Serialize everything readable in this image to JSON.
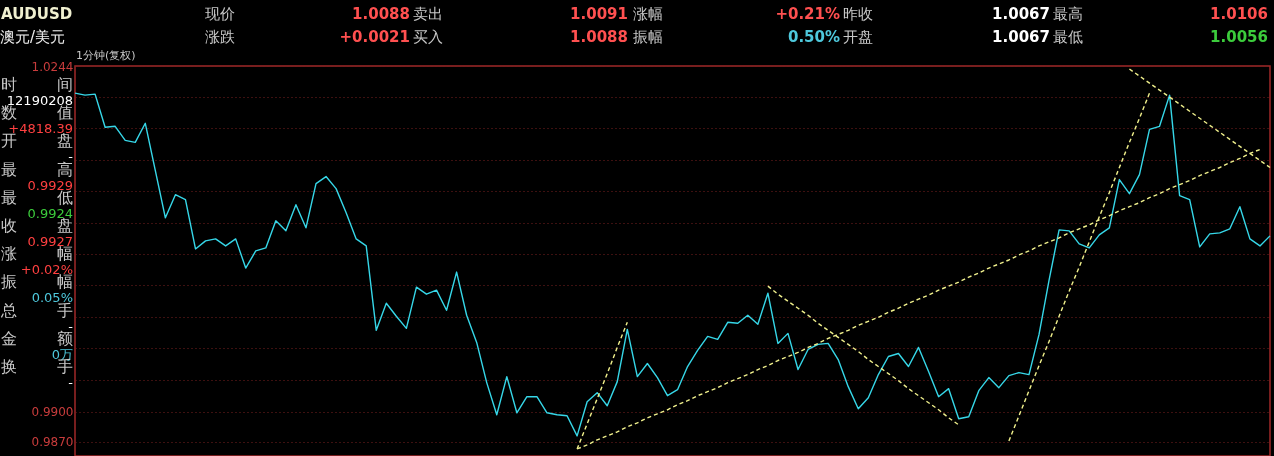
{
  "chart_data": {
    "type": "line",
    "title": "AUDUSD",
    "subtitle": "澳元/美元",
    "annotations": [
      "1分钟(复权)",
      "现价",
      "1.0088",
      "卖出",
      "1.0091",
      "涨幅",
      "+0.21%",
      "昨收",
      "1.0067",
      "最高",
      "1.0106",
      "涨跌",
      "+0.0021",
      "买入",
      "1.0088",
      "振幅",
      "0.50%",
      "开盘",
      "1.0067",
      "最低",
      "1.0056",
      "时",
      "间",
      "12190208",
      "数",
      "值",
      "+4818.39",
      "开",
      "盘",
      "-",
      "最",
      "高",
      "0.9929",
      "最",
      "低",
      "0.9924",
      "收",
      "盘",
      "0.9927",
      "涨",
      "幅",
      "+0.02%",
      "振",
      "幅",
      "0.05%",
      "总",
      "手",
      "-",
      "金",
      "额",
      "0万",
      "换",
      "手",
      "-"
    ],
    "categories": [
      null,
      null,
      null,
      null,
      null,
      null,
      null,
      null,
      null,
      null,
      null,
      null,
      null,
      null,
      null,
      null,
      null,
      null,
      null,
      null,
      null,
      null,
      null,
      null,
      null,
      null,
      null,
      null,
      null,
      null,
      null,
      null,
      null,
      null,
      null,
      null,
      null,
      null,
      null,
      null,
      null,
      null,
      null,
      null,
      null,
      null,
      null,
      null,
      null,
      null,
      null,
      null,
      null,
      null,
      null,
      null,
      null,
      null,
      null,
      null,
      null,
      null,
      null,
      null,
      null,
      null,
      null,
      null,
      null,
      null,
      null,
      null,
      null,
      null,
      null,
      null,
      null,
      null,
      null,
      null,
      null,
      null,
      null,
      null,
      null,
      null,
      null,
      null,
      null,
      null,
      null,
      null,
      null,
      null,
      null,
      null,
      null,
      null,
      null,
      null,
      null,
      null,
      null,
      null,
      null,
      null,
      null,
      null,
      null,
      null,
      null,
      null,
      null,
      null,
      null,
      null,
      null,
      null,
      null,
      null
    ],
    "series": [
      {
        "color": "#36d7e8",
        "values": [
          1.0217,
          1.0215,
          1.0216,
          1.0183,
          1.0184,
          1.017,
          1.0168,
          1.0187,
          1.014,
          1.0093,
          1.0116,
          1.0111,
          1.0062,
          1.007,
          1.0072,
          1.0065,
          1.0072,
          1.0043,
          1.006,
          1.0063,
          1.009,
          1.008,
          1.0106,
          1.0083,
          1.0127,
          1.0134,
          1.0122,
          1.0098,
          1.0072,
          1.0065,
          0.9981,
          1.0008,
          0.9995,
          0.9983,
          1.0024,
          1.0017,
          1.0021,
          1.0001,
          1.0039,
          0.9996,
          0.9969,
          0.9929,
          0.9897,
          0.9935,
          0.9899,
          0.9915,
          0.9915,
          0.9899,
          0.9897,
          0.9896,
          0.9876,
          0.991,
          0.9919,
          0.9906,
          0.993,
          0.9982,
          0.9935,
          0.9948,
          0.9934,
          0.9916,
          0.9922,
          0.9945,
          0.9961,
          0.9975,
          0.9972,
          0.9989,
          0.9988,
          0.9996,
          0.9987,
          1.0018,
          0.9968,
          0.9978,
          0.9942,
          0.9962,
          0.9967,
          0.9968,
          0.9952,
          0.9925,
          0.9903,
          0.9914,
          0.9937,
          0.9955,
          0.9958,
          0.9945,
          0.9964,
          0.994,
          0.9915,
          0.9923,
          0.9893,
          0.9895,
          0.9921,
          0.9934,
          0.9924,
          0.9936,
          0.9939,
          0.9937,
          0.9977,
          1.0031,
          1.0081,
          1.008,
          1.0067,
          1.0063,
          1.0076,
          1.0083,
          1.0131,
          1.0117,
          1.0136,
          1.0181,
          1.0184,
          1.0215,
          1.0115,
          1.0111,
          1.0064,
          1.0077,
          1.0078,
          1.0082,
          1.0104,
          1.0072,
          1.0065,
          1.0075
        ]
      },
      {
        "color": "#f0f08c",
        "line_style": "dashed",
        "values": [
          null,
          null,
          null,
          null,
          null,
          null,
          null,
          null,
          null,
          null,
          null,
          null,
          null,
          null,
          null,
          null,
          null,
          null,
          null,
          null,
          null,
          null,
          null,
          null,
          null,
          null,
          null,
          null,
          null,
          null,
          null,
          null,
          null,
          null,
          null,
          null,
          null,
          null,
          null,
          null,
          null,
          null,
          null,
          null,
          null,
          null,
          null,
          null,
          null,
          null,
          0.9863,
          0.9888,
          0.9913,
          0.9938,
          0.9964,
          0.9989,
          null,
          null,
          null,
          null,
          null,
          null,
          null,
          null,
          null,
          null,
          null,
          null,
          null,
          null,
          null,
          null,
          null,
          null,
          null,
          null,
          null,
          null,
          null,
          null,
          null,
          null,
          null,
          null,
          null,
          null,
          null,
          null,
          null,
          null,
          null,
          null,
          null,
          null,
          null,
          null,
          null,
          null,
          null,
          null,
          null,
          null,
          null,
          null,
          null,
          null,
          null,
          null,
          null,
          null,
          null,
          null,
          null,
          null,
          null,
          null,
          null,
          null,
          null,
          null
        ]
      },
      {
        "color": "#f0f08c",
        "line_style": "dashed",
        "values": [
          null,
          null,
          null,
          null,
          null,
          null,
          null,
          null,
          null,
          null,
          null,
          null,
          null,
          null,
          null,
          null,
          null,
          null,
          null,
          null,
          null,
          null,
          null,
          null,
          null,
          null,
          null,
          null,
          null,
          null,
          null,
          null,
          null,
          null,
          null,
          null,
          null,
          null,
          null,
          null,
          null,
          null,
          null,
          null,
          null,
          null,
          null,
          null,
          null,
          null,
          0.9863,
          0.9867,
          0.9872,
          0.9876,
          0.988,
          0.9885,
          0.9889,
          0.9894,
          0.9898,
          0.9902,
          0.9907,
          0.9911,
          0.9916,
          0.992,
          0.9924,
          0.9929,
          0.9933,
          0.9937,
          0.9942,
          0.9946,
          0.9951,
          0.9955,
          0.9959,
          0.9964,
          0.9968,
          0.9973,
          0.9977,
          0.9981,
          0.9986,
          0.999,
          0.9994,
          0.9999,
          1.0003,
          1.0008,
          1.0012,
          1.0016,
          1.0021,
          1.0025,
          1.0029,
          1.0034,
          1.0038,
          1.0043,
          1.0047,
          1.0051,
          1.0056,
          1.006,
          1.0065,
          1.0069,
          1.0073,
          1.0078,
          1.0082,
          1.0086,
          1.0091,
          1.0095,
          1.01,
          1.0104,
          1.0108,
          1.0113,
          1.0117,
          1.0122,
          1.0126,
          1.013,
          1.0135,
          1.0139,
          1.0143,
          1.0148,
          1.0152,
          1.0157,
          1.0161,
          null
        ]
      },
      {
        "color": "#f0f08c",
        "line_style": "dashed",
        "values": [
          null,
          null,
          null,
          null,
          null,
          null,
          null,
          null,
          null,
          null,
          null,
          null,
          null,
          null,
          null,
          null,
          null,
          null,
          null,
          null,
          null,
          null,
          null,
          null,
          null,
          null,
          null,
          null,
          null,
          null,
          null,
          null,
          null,
          null,
          null,
          null,
          null,
          null,
          null,
          null,
          null,
          null,
          null,
          null,
          null,
          null,
          null,
          null,
          null,
          null,
          null,
          null,
          null,
          null,
          null,
          null,
          null,
          null,
          null,
          null,
          null,
          null,
          null,
          null,
          null,
          null,
          null,
          null,
          null,
          1.0025,
          1.0017,
          1.001,
          1.0003,
          0.9996,
          0.9988,
          0.9981,
          0.9974,
          0.9967,
          0.996,
          0.9952,
          0.9945,
          0.9938,
          0.9931,
          0.9923,
          0.9916,
          0.9909,
          0.9902,
          0.9894,
          0.9887,
          null,
          null,
          null,
          null,
          null,
          null,
          null,
          null,
          null,
          null,
          null,
          null,
          null,
          null,
          null,
          null,
          null,
          null,
          null,
          null,
          null,
          null,
          null,
          null,
          null,
          null,
          null,
          null,
          null,
          null,
          null
        ]
      },
      {
        "color": "#f0f08c",
        "line_style": "dashed",
        "values": [
          null,
          null,
          null,
          null,
          null,
          null,
          null,
          null,
          null,
          null,
          null,
          null,
          null,
          null,
          null,
          null,
          null,
          null,
          null,
          null,
          null,
          null,
          null,
          null,
          null,
          null,
          null,
          null,
          null,
          null,
          null,
          null,
          null,
          null,
          null,
          null,
          null,
          null,
          null,
          null,
          null,
          null,
          null,
          null,
          null,
          null,
          null,
          null,
          null,
          null,
          null,
          null,
          null,
          null,
          null,
          null,
          null,
          null,
          null,
          null,
          null,
          null,
          null,
          null,
          null,
          null,
          null,
          null,
          null,
          null,
          null,
          null,
          null,
          null,
          null,
          null,
          null,
          null,
          null,
          null,
          null,
          null,
          null,
          null,
          null,
          null,
          null,
          null,
          null,
          null,
          null,
          null,
          null,
          0.9871,
          0.9896,
          0.9921,
          0.9946,
          0.997,
          0.9995,
          1.002,
          1.0044,
          1.0069,
          1.0094,
          1.0118,
          1.0143,
          1.0168,
          1.0192,
          1.0217,
          null,
          null,
          null,
          null,
          null,
          null,
          null,
          null,
          null,
          null,
          null,
          null
        ]
      },
      {
        "color": "#f0f08c",
        "line_style": "dashed",
        "values": [
          null,
          null,
          null,
          null,
          null,
          null,
          null,
          null,
          null,
          null,
          null,
          null,
          null,
          null,
          null,
          null,
          null,
          null,
          null,
          null,
          null,
          null,
          null,
          null,
          null,
          null,
          null,
          null,
          null,
          null,
          null,
          null,
          null,
          null,
          null,
          null,
          null,
          null,
          null,
          null,
          null,
          null,
          null,
          null,
          null,
          null,
          null,
          null,
          null,
          null,
          null,
          null,
          null,
          null,
          null,
          null,
          null,
          null,
          null,
          null,
          null,
          null,
          null,
          null,
          null,
          null,
          null,
          null,
          null,
          null,
          null,
          null,
          null,
          null,
          null,
          null,
          null,
          null,
          null,
          null,
          null,
          null,
          null,
          null,
          null,
          null,
          null,
          null,
          null,
          null,
          null,
          null,
          null,
          null,
          null,
          null,
          null,
          null,
          null,
          null,
          null,
          null,
          null,
          null,
          null,
          1.0241,
          1.0234,
          1.0227,
          1.022,
          1.0213,
          1.0206,
          1.0199,
          1.0192,
          1.0185,
          1.0178,
          1.0171,
          1.0164,
          1.0157,
          1.015,
          1.0143
        ]
      }
    ],
    "ylim": [
      0.9856,
      1.0244
    ],
    "yticks": [
      1.0244,
      {
        "value": 1.0213,
        "label": null
      },
      {
        "value": 1.0182,
        "label": null
      },
      {
        "value": 1.015,
        "label": null
      },
      {
        "value": 1.012,
        "label": null
      },
      {
        "value": 1.0088,
        "label": null
      },
      {
        "value": 1.0057,
        "label": null
      },
      {
        "value": 1.0026,
        "label": null
      },
      {
        "value": 0.9994,
        "label": null
      },
      {
        "value": 0.9963,
        "label": null
      },
      {
        "value": 0.9932,
        "label": null
      },
      {
        "value": 0.99,
        "label": "0.9900"
      },
      {
        "value": 0.987,
        "label": "0.9870"
      }
    ],
    "grid": "y",
    "tick_labels": "y",
    "marker": "none"
  }
}
